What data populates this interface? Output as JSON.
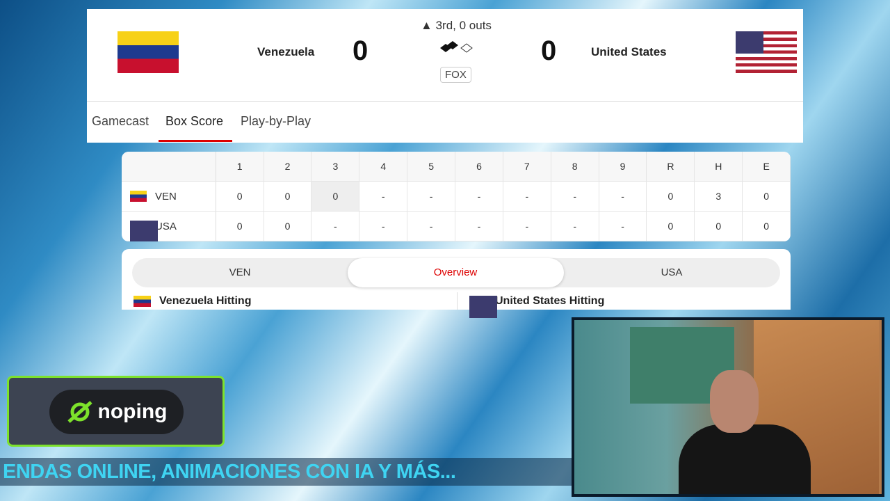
{
  "game": {
    "away": {
      "name": "Venezuela",
      "abbr": "VEN",
      "score": "0"
    },
    "home": {
      "name": "United States",
      "abbr": "USA",
      "score": "0"
    },
    "status": "▲ 3rd, 0 outs",
    "network": "FOX"
  },
  "tabs": [
    "Gamecast",
    "Box Score",
    "Play-by-Play"
  ],
  "active_tab": "Box Score",
  "linescore": {
    "headers": [
      "1",
      "2",
      "3",
      "4",
      "5",
      "6",
      "7",
      "8",
      "9",
      "R",
      "H",
      "E"
    ],
    "rows": [
      {
        "team": "VEN",
        "cells": [
          "0",
          "0",
          "0",
          "-",
          "-",
          "-",
          "-",
          "-",
          "-",
          "0",
          "3",
          "0"
        ]
      },
      {
        "team": "USA",
        "cells": [
          "0",
          "0",
          "-",
          "-",
          "-",
          "-",
          "-",
          "-",
          "-",
          "0",
          "0",
          "0"
        ]
      }
    ]
  },
  "segment": {
    "options": [
      "VEN",
      "Overview",
      "USA"
    ],
    "active": "Overview"
  },
  "hitting": {
    "away": "Venezuela Hitting",
    "home": "United States Hitting"
  },
  "sponsor": "noping",
  "ticker": "ENDAS ONLINE, ANIMACIONES CON IA Y MÁS...",
  "colors": {
    "accent": "#d00",
    "noping_green": "#7de22b",
    "ticker_text": "#3fd4f2"
  }
}
